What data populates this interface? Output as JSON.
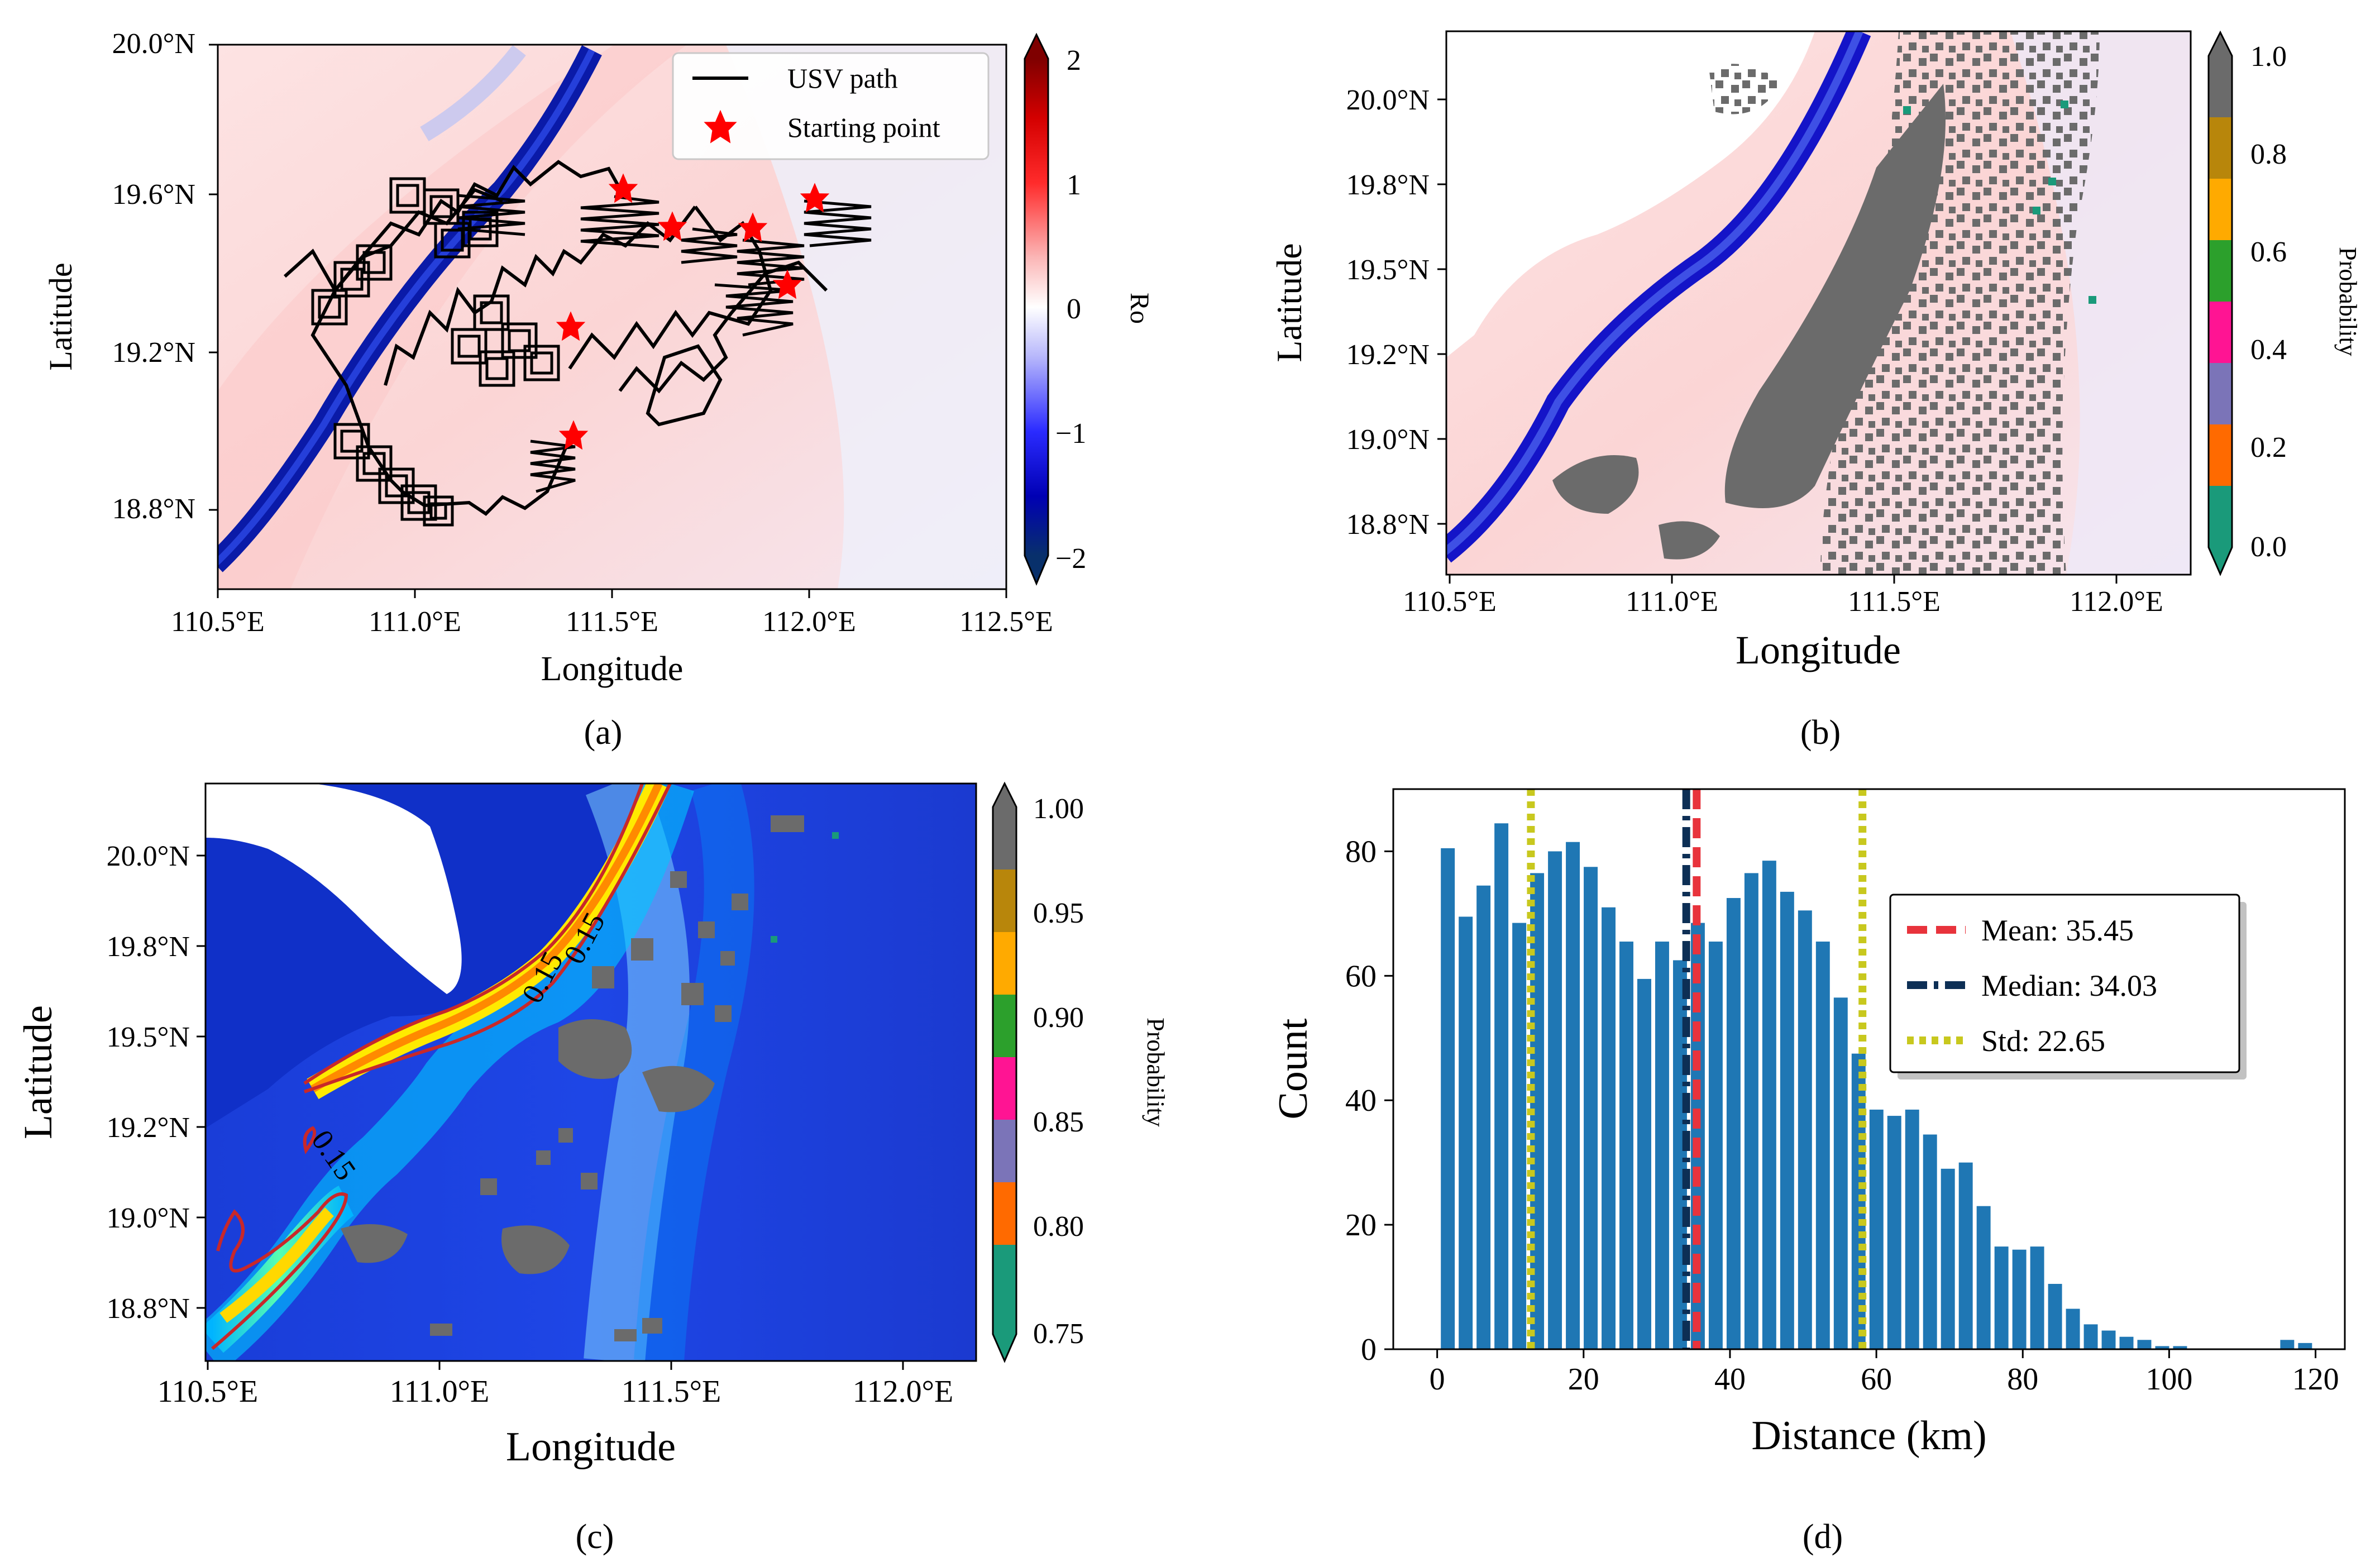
{
  "figure": {
    "panel_labels": [
      "(a)",
      "(b)",
      "(c)",
      "(d)"
    ]
  },
  "chart_data": [
    {
      "panel": "a",
      "type": "heatmap",
      "title": "",
      "xlabel": "Longitude",
      "ylabel": "Latitude",
      "x_ticks": [
        "110.5°E",
        "111.0°E",
        "111.5°E",
        "112.0°E",
        "112.5°E"
      ],
      "y_ticks": [
        "18.8°N",
        "19.2°N",
        "19.6°N",
        "20.0°N"
      ],
      "xlim": [
        110.5,
        112.5
      ],
      "ylim": [
        18.65,
        20.0
      ],
      "colorbar": {
        "label": "Ro",
        "ticks": [
          "2",
          "1",
          "0",
          "−1",
          "−2"
        ],
        "range": [
          -2,
          2
        ],
        "colors": {
          "low": "#08306b",
          "mid": "#ffffff",
          "high": "#7f0000"
        }
      },
      "legend": {
        "position": "top-right",
        "entries": [
          {
            "label": "USV path",
            "color": "#000000",
            "marker": "line"
          },
          {
            "label": "Starting point",
            "color": "#ff0000",
            "marker": "star"
          }
        ]
      },
      "starting_points": [
        {
          "lon": 111.52,
          "lat": 19.6
        },
        {
          "lon": 111.65,
          "lat": 19.52
        },
        {
          "lon": 111.86,
          "lat": 19.52
        },
        {
          "lon": 112.01,
          "lat": 19.59
        },
        {
          "lon": 111.94,
          "lat": 19.38
        },
        {
          "lon": 111.39,
          "lat": 19.27
        },
        {
          "lon": 111.39,
          "lat": 18.99
        }
      ],
      "usv_path_main": [
        [
          111.52,
          19.6
        ],
        [
          111.4,
          19.48
        ],
        [
          111.3,
          19.55
        ],
        [
          111.2,
          19.5
        ],
        [
          111.1,
          19.55
        ],
        [
          110.95,
          19.5
        ],
        [
          110.85,
          19.42
        ],
        [
          110.75,
          19.35
        ],
        [
          110.7,
          19.3
        ],
        [
          110.74,
          19.2
        ],
        [
          110.85,
          19.1
        ],
        [
          110.95,
          19.0
        ],
        [
          110.9,
          18.95
        ],
        [
          111.0,
          18.88
        ],
        [
          111.05,
          18.82
        ],
        [
          111.2,
          18.83
        ],
        [
          111.39,
          18.99
        ]
      ]
    },
    {
      "panel": "b",
      "type": "heatmap",
      "title": "",
      "xlabel": "Longitude",
      "ylabel": "Latitude",
      "x_ticks": [
        "110.5°E",
        "111.0°E",
        "111.5°E",
        "112.0°E"
      ],
      "y_ticks": [
        "18.8°N",
        "19.0°N",
        "19.2°N",
        "19.5°N",
        "19.8°N",
        "20.0°N"
      ],
      "xlim": [
        110.5,
        112.2
      ],
      "ylim": [
        18.7,
        20.2
      ],
      "colorbar": {
        "label": "Probability",
        "ticks": [
          "1.0",
          "0.8",
          "0.6",
          "0.4",
          "0.2",
          "0.0"
        ],
        "bins": [
          {
            "from": 0.0,
            "to": 0.125,
            "color": "#1a9a7a"
          },
          {
            "from": 0.125,
            "to": 0.25,
            "color": "#ff6a00"
          },
          {
            "from": 0.25,
            "to": 0.375,
            "color": "#7b74b8"
          },
          {
            "from": 0.375,
            "to": 0.5,
            "color": "#ff1493"
          },
          {
            "from": 0.5,
            "to": 0.625,
            "color": "#2ca02c"
          },
          {
            "from": 0.625,
            "to": 0.75,
            "color": "#ffaa00"
          },
          {
            "from": 0.75,
            "to": 0.875,
            "color": "#b8860b"
          },
          {
            "from": 0.875,
            "to": 1.0,
            "color": "#6b6b6b"
          }
        ]
      }
    },
    {
      "panel": "c",
      "type": "heatmap",
      "title": "",
      "xlabel": "Longitude",
      "ylabel": "Latitude",
      "x_ticks": [
        "110.5°E",
        "111.0°E",
        "111.5°E",
        "112.0°E"
      ],
      "y_ticks": [
        "18.8°N",
        "19.0°N",
        "19.2°N",
        "19.5°N",
        "19.8°N",
        "20.0°N"
      ],
      "xlim": [
        110.5,
        112.2
      ],
      "ylim": [
        18.7,
        20.2
      ],
      "contour_labels": [
        "0.15",
        "0.15",
        "0.15"
      ],
      "colorbar": {
        "label": "Probability",
        "ticks": [
          "1.00",
          "0.95",
          "0.90",
          "0.85",
          "0.80",
          "0.75"
        ],
        "bins": [
          {
            "from": 0.75,
            "to": 0.78,
            "color": "#1a9a7a"
          },
          {
            "from": 0.78,
            "to": 0.81,
            "color": "#ff6a00"
          },
          {
            "from": 0.81,
            "to": 0.84,
            "color": "#7b74b8"
          },
          {
            "from": 0.84,
            "to": 0.87,
            "color": "#ff1493"
          },
          {
            "from": 0.87,
            "to": 0.9,
            "color": "#2ca02c"
          },
          {
            "from": 0.9,
            "to": 0.93,
            "color": "#ffaa00"
          },
          {
            "from": 0.93,
            "to": 0.96,
            "color": "#b8860b"
          },
          {
            "from": 0.96,
            "to": 1.0,
            "color": "#6b6b6b"
          }
        ]
      }
    },
    {
      "panel": "d",
      "type": "bar",
      "title": "",
      "xlabel": "Distance (km)",
      "ylabel": "Count",
      "xlim": [
        -6,
        124
      ],
      "ylim": [
        0,
        90
      ],
      "x_ticks": [
        "0",
        "20",
        "40",
        "60",
        "80",
        "100",
        "120"
      ],
      "y_ticks": [
        "0",
        "20",
        "40",
        "60",
        "80"
      ],
      "bin_width": 2.44,
      "bin_starts": [
        0.5,
        2.94,
        5.38,
        7.82,
        10.26,
        12.7,
        15.14,
        17.58,
        20.02,
        22.46,
        24.9,
        27.34,
        29.78,
        32.22,
        34.66,
        37.1,
        39.54,
        41.98,
        44.42,
        46.86,
        49.3,
        51.74,
        54.18,
        56.62,
        59.06,
        61.5,
        63.94,
        66.38,
        68.82,
        71.26,
        73.7,
        76.14,
        78.58,
        81.02,
        83.46,
        85.9,
        88.34,
        90.78,
        93.22,
        95.66,
        98.1,
        100.54,
        102.98,
        105.42,
        107.86,
        110.3,
        112.74,
        115.18,
        117.62
      ],
      "values": [
        80.5,
        69.5,
        74.5,
        84.5,
        68.5,
        76.5,
        80,
        81.5,
        77.5,
        71,
        65.5,
        59.5,
        65.5,
        62.5,
        68.5,
        65.5,
        72.5,
        76.5,
        78.5,
        73.5,
        70.5,
        65.5,
        56.5,
        47.5,
        38.5,
        37.5,
        38.5,
        34.5,
        29,
        30,
        23,
        16.5,
        16,
        16.5,
        10.5,
        6.5,
        4,
        3,
        2,
        1.5,
        0.5,
        0.5,
        0,
        0,
        0,
        0,
        0,
        1.5,
        1
      ],
      "bar_color": "#1f77b4",
      "reference_lines": [
        {
          "label": "Mean: 35.45",
          "value": 35.45,
          "color": "#e8333c",
          "style": "dashed"
        },
        {
          "label": "Median: 34.03",
          "value": 34.03,
          "color": "#0d2f55",
          "style": "dashdot"
        },
        {
          "label": "Std: 22.65",
          "values": [
            12.8,
            58.1
          ],
          "color": "#c8c81e",
          "style": "dotted"
        }
      ],
      "legend": {
        "position": "upper-right"
      }
    }
  ]
}
